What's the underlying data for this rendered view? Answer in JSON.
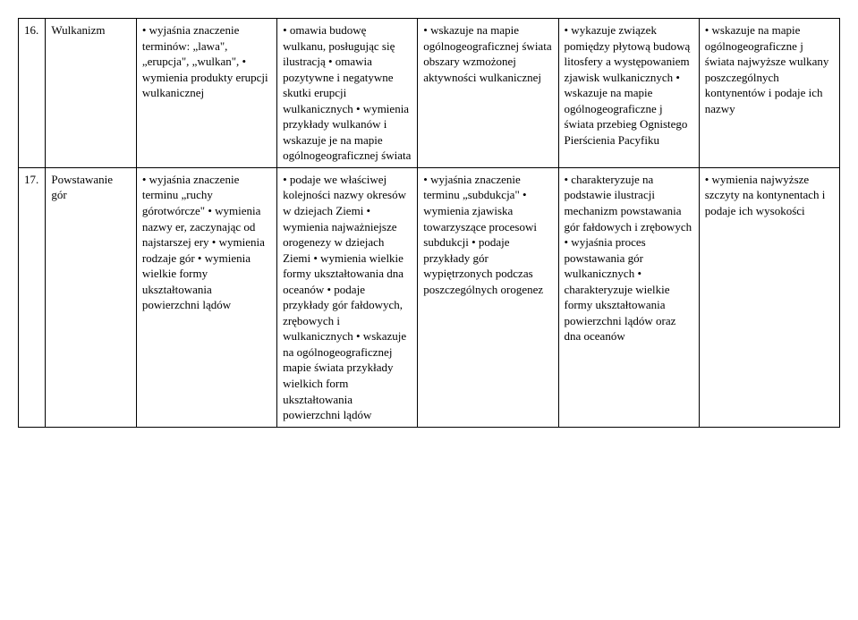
{
  "rows": [
    {
      "num": "16.",
      "topic": "Wulkanizm",
      "c1": "• wyjaśnia znaczenie terminów: „lawa\", „erupcja\", „wulkan\", • wymienia produkty erupcji wulkanicznej",
      "c2": "• omawia budowę wulkanu, posługując się ilustracją • omawia pozytywne i negatywne skutki erupcji wulkanicznych • wymienia przykłady wulkanów i wskazuje je na mapie ogólnogeograficznej świata",
      "c3": "• wskazuje na mapie ogólnogeograficznej świata obszary wzmożonej aktywności wulkanicznej",
      "c4": "• wykazuje związek pomiędzy płytową budową litosfery a występowaniem zjawisk wulkanicznych  • wskazuje na mapie ogólnogeograficzne j świata przebieg Ognistego Pierścienia Pacyfiku",
      "c5": "• wskazuje na mapie ogólnogeograficzne j świata najwyższe wulkany poszczególnych kontynentów i podaje ich nazwy"
    },
    {
      "num": "17.",
      "topic": "Powstawanie gór",
      "c1": "• wyjaśnia znaczenie terminu „ruchy górotwórcze\" • wymienia nazwy er, zaczynając od najstarszej ery • wymienia rodzaje gór • wymienia wielkie formy ukształtowania powierzchni lądów",
      "c2": "• podaje we właściwej kolejności nazwy okresów w dziejach Ziemi • wymienia najważniejsze orogenezy w dziejach Ziemi • wymienia wielkie formy ukształtowania dna oceanów • podaje przykłady gór fałdowych, zrębowych i wulkanicznych • wskazuje na ogólnogeograficznej mapie świata przykłady wielkich form ukształtowania powierzchni lądów",
      "c3": "• wyjaśnia znaczenie terminu „subdukcja\" • wymienia zjawiska towarzyszące procesowi subdukcji • podaje przykłady gór wypiętrzonych podczas poszczególnych orogenez",
      "c4": "• charakteryzuje na podstawie ilustracji mechanizm powstawania gór fałdowych i zrębowych • wyjaśnia proces powstawania gór wulkanicznych • charakteryzuje wielkie formy ukształtowania powierzchni lądów oraz dna oceanów",
      "c5": "• wymienia najwyższe szczyty na kontynentach i podaje ich wysokości"
    }
  ]
}
